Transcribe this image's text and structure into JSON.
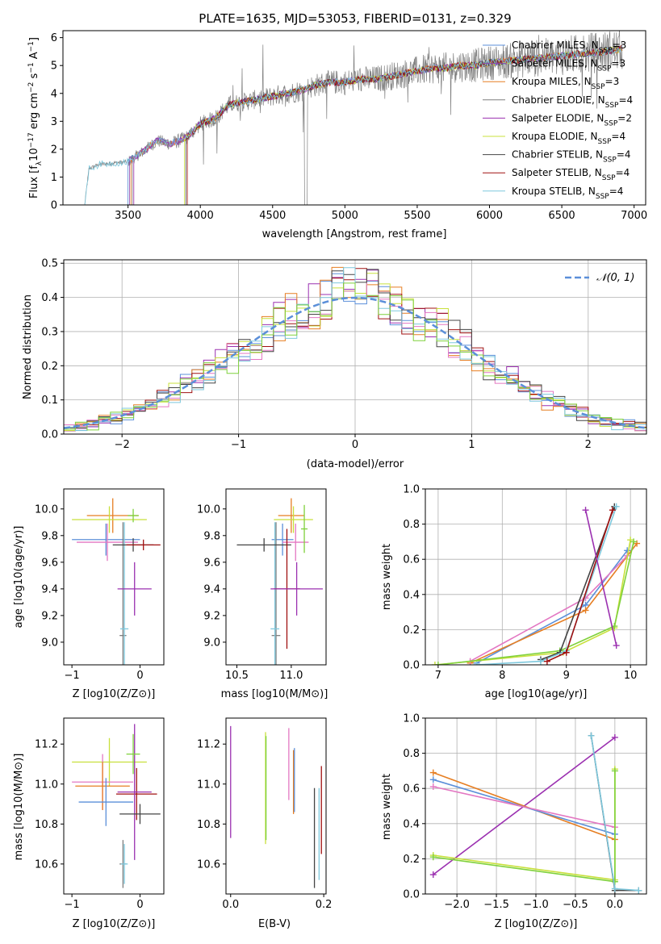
{
  "title": "PLATE=1635, MJD=53053, FIBERID=0131, z=0.329",
  "colors": {
    "chabrier_miles": "#5b8fd9",
    "salpeter_miles": "#8e44ad",
    "kroupa_miles": "#e67e22",
    "chabrier_elodie": "#7f7f7f",
    "salpeter_elodie": "#9b30b0",
    "kroupa_elodie": "#c8e03c",
    "chabrier_stelib": "#444444",
    "salpeter_stelib": "#a01010",
    "kroupa_stelib": "#7ec8dd",
    "pink": "#e377c2",
    "green": "#7fd13b",
    "grid": "#b0b0b0",
    "normal_curve": "#5b8fd9"
  },
  "chart_data": [
    {
      "id": "spectrum",
      "type": "line",
      "xlabel": "wavelength [Angstrom, rest frame]",
      "ylabel_parts": [
        "Flux [f",
        "λ",
        "10",
        "−17",
        " erg cm",
        "−2",
        " s",
        "−1",
        " A",
        "−1",
        "]"
      ],
      "xlim": [
        3050,
        7080
      ],
      "ylim": [
        0,
        6.25
      ],
      "xticks": [
        3500,
        4000,
        4500,
        5000,
        5500,
        6000,
        6500,
        7000
      ],
      "yticks": [
        0,
        1,
        2,
        3,
        4,
        5,
        6
      ],
      "grid": false,
      "legend_position": "right",
      "legend": [
        {
          "name": "Chabrier MILES",
          "n": "3"
        },
        {
          "name": "Salpeter MILES",
          "n": "3"
        },
        {
          "name": "Kroupa MILES",
          "n": "3"
        },
        {
          "name": "Chabrier ELODIE",
          "n": "4"
        },
        {
          "name": "Salpeter ELODIE",
          "n": "2"
        },
        {
          "name": "Kroupa ELODIE",
          "n": "4"
        },
        {
          "name": "Chabrier STELIB",
          "n": "4"
        },
        {
          "name": "Salpeter STELIB",
          "n": "4"
        },
        {
          "name": "Kroupa STELIB",
          "n": "4"
        }
      ],
      "legend_n_label": "N",
      "legend_n_sub": "SSP",
      "data_knots": {
        "x": [
          3200,
          3230,
          3300,
          3400,
          3500,
          3600,
          3700,
          3800,
          3900,
          4000,
          4100,
          4200,
          4300,
          4400,
          4500,
          4600,
          4700,
          4800,
          4900,
          5000,
          5100,
          5200,
          5300,
          5400,
          5500,
          5600,
          5700,
          5800,
          5900,
          6000,
          6200,
          6400,
          6600,
          6800,
          6920
        ],
        "y": [
          0,
          1.3,
          1.45,
          1.5,
          1.55,
          1.9,
          2.3,
          2.2,
          2.4,
          2.9,
          3.1,
          3.6,
          3.7,
          3.8,
          3.9,
          4.0,
          4.1,
          4.3,
          4.4,
          4.4,
          4.5,
          4.5,
          4.6,
          4.7,
          4.8,
          4.9,
          4.9,
          5.0,
          5.0,
          5.1,
          5.2,
          5.3,
          5.4,
          5.5,
          5.6
        ]
      },
      "model_starts": [
        3500,
        3510,
        3520,
        3530,
        3540,
        3890,
        3900,
        3910,
        3200
      ]
    },
    {
      "id": "residuals",
      "type": "histogram",
      "xlabel": "(data-model)/error",
      "ylabel": "Normed distribution",
      "xlim": [
        -2.5,
        2.5
      ],
      "ylim": [
        0,
        0.51
      ],
      "xticks": [
        -2,
        -1,
        0,
        1,
        2
      ],
      "xtick_labels": [
        "−2",
        "−1",
        "0",
        "1",
        "2"
      ],
      "yticks": [
        0,
        0.1,
        0.2,
        0.3,
        0.4,
        0.5
      ],
      "ytick_labels": [
        "0.0",
        "0.1",
        "0.2",
        "0.3",
        "0.4",
        "0.5"
      ],
      "grid": true,
      "legend_position": "top-right",
      "legend_label": "𝒩(0, 1)",
      "bin_width": 0.1
    },
    {
      "id": "age_vs_Z",
      "type": "errorbar",
      "xlabel": "Z [log10(Z/Z⊙)]",
      "ylabel": "age [log10(age/yr)]",
      "xlim": [
        -1.12,
        0.35
      ],
      "ylim": [
        8.83,
        10.15
      ],
      "xticks": [
        -1,
        0
      ],
      "xtick_labels": [
        "−1",
        "0"
      ],
      "yticks": [
        9.0,
        9.2,
        9.4,
        9.6,
        9.8,
        10.0
      ],
      "ytick_labels": [
        "9.0",
        "9.2",
        "9.4",
        "9.6",
        "9.8",
        "10.0"
      ],
      "points": [
        {
          "x": -0.4,
          "xerr": 0.38,
          "y": 9.95,
          "yerr": 0.13,
          "c": "kroupa_miles"
        },
        {
          "x": -0.45,
          "xerr": 0.55,
          "y": 9.92,
          "yerr": 0.1,
          "c": "kroupa_elodie"
        },
        {
          "x": -0.5,
          "xerr": 0.5,
          "y": 9.77,
          "yerr": 0.12,
          "c": "chabrier_miles"
        },
        {
          "x": -0.48,
          "xerr": 0.45,
          "y": 9.75,
          "yerr": 0.14,
          "c": "pink"
        },
        {
          "x": -0.25,
          "xerr": 0.05,
          "y": 9.05,
          "yerr": 0.85,
          "c": "chabrier_elodie"
        },
        {
          "x": -0.23,
          "xerr": 0.06,
          "y": 9.1,
          "yerr": 0.8,
          "c": "kroupa_stelib"
        },
        {
          "x": -0.1,
          "xerr": 0.3,
          "y": 9.73,
          "yerr": 0.05,
          "c": "chabrier_stelib"
        },
        {
          "x": 0.05,
          "xerr": 0.25,
          "y": 9.73,
          "yerr": 0.04,
          "c": "salpeter_stelib"
        },
        {
          "x": -0.08,
          "xerr": 0.25,
          "y": 9.4,
          "yerr": 0.2,
          "c": "salpeter_elodie"
        },
        {
          "x": -0.1,
          "xerr": 0.08,
          "y": 9.95,
          "yerr": 0.05,
          "c": "green"
        }
      ]
    },
    {
      "id": "age_vs_mass",
      "type": "errorbar",
      "xlabel": "mass [log10(M/M⊙)]",
      "xlim": [
        10.4,
        11.32
      ],
      "ylim": [
        8.83,
        10.15
      ],
      "xticks": [
        10.5,
        11.0
      ],
      "xtick_labels": [
        "10.5",
        "11.0"
      ],
      "yticks": [
        9.0,
        9.2,
        9.4,
        9.6,
        9.8,
        10.0
      ],
      "ytick_labels": [
        "9.0",
        "9.2",
        "9.4",
        "9.6",
        "9.8",
        "10.0"
      ],
      "points": [
        {
          "x": 11.0,
          "xerr": 0.12,
          "y": 9.95,
          "yerr": 0.13,
          "c": "kroupa_miles"
        },
        {
          "x": 11.02,
          "xerr": 0.18,
          "y": 9.92,
          "yerr": 0.1,
          "c": "kroupa_elodie"
        },
        {
          "x": 10.92,
          "xerr": 0.1,
          "y": 9.77,
          "yerr": 0.12,
          "c": "chabrier_miles"
        },
        {
          "x": 11.04,
          "xerr": 0.12,
          "y": 9.75,
          "yerr": 0.14,
          "c": "pink"
        },
        {
          "x": 10.86,
          "xerr": 0.04,
          "y": 9.05,
          "yerr": 0.85,
          "c": "chabrier_elodie"
        },
        {
          "x": 10.85,
          "xerr": 0.04,
          "y": 9.1,
          "yerr": 0.8,
          "c": "kroupa_stelib"
        },
        {
          "x": 10.75,
          "xerr": 0.25,
          "y": 9.73,
          "yerr": 0.05,
          "c": "chabrier_stelib"
        },
        {
          "x": 10.96,
          "xerr": 0.12,
          "y": 9.4,
          "yerr": 0.45,
          "c": "salpeter_stelib"
        },
        {
          "x": 11.05,
          "xerr": 0.24,
          "y": 9.4,
          "yerr": 0.2,
          "c": "salpeter_elodie"
        },
        {
          "x": 11.12,
          "xerr": 0.03,
          "y": 9.85,
          "yerr": 0.18,
          "c": "green"
        }
      ]
    },
    {
      "id": "massweight_vs_age",
      "type": "line",
      "xlabel": "age [log10(age/yr)]",
      "ylabel": "mass weight",
      "xlim": [
        6.8,
        10.25
      ],
      "ylim": [
        0,
        1.0
      ],
      "xticks": [
        7,
        8,
        9,
        10
      ],
      "yticks": [
        0,
        0.2,
        0.4,
        0.6,
        0.8,
        1.0
      ],
      "ytick_labels": [
        "0.0",
        "0.2",
        "0.4",
        "0.6",
        "0.8",
        "1.0"
      ],
      "grid": true,
      "series": [
        {
          "c": "chabrier_miles",
          "x": [
            7.6,
            9.3,
            9.95
          ],
          "y": [
            0.01,
            0.34,
            0.65
          ]
        },
        {
          "c": "kroupa_miles",
          "x": [
            7.5,
            9.3,
            10.1
          ],
          "y": [
            0.01,
            0.31,
            0.69
          ]
        },
        {
          "c": "pink",
          "x": [
            7.5,
            9.3,
            9.95
          ],
          "y": [
            0.02,
            0.38,
            0.62
          ]
        },
        {
          "c": "kroupa_elodie",
          "x": [
            6.95,
            8.95,
            9.75,
            10.0
          ],
          "y": [
            0.0,
            0.07,
            0.21,
            0.71
          ]
        },
        {
          "c": "green",
          "x": [
            7.0,
            8.9,
            9.75,
            10.05
          ],
          "y": [
            0.0,
            0.08,
            0.22,
            0.7
          ]
        },
        {
          "c": "chabrier_stelib",
          "x": [
            8.6,
            8.9,
            9.75
          ],
          "y": [
            0.03,
            0.07,
            0.9
          ]
        },
        {
          "c": "kroupa_stelib",
          "x": [
            7.6,
            8.6,
            9.0,
            9.78
          ],
          "y": [
            0.0,
            0.02,
            0.08,
            0.9
          ]
        },
        {
          "c": "salpeter_stelib",
          "x": [
            8.7,
            9.0,
            9.72
          ],
          "y": [
            0.02,
            0.07,
            0.88
          ]
        },
        {
          "c": "salpeter_elodie",
          "x": [
            9.3,
            9.78
          ],
          "y": [
            0.88,
            0.11
          ]
        }
      ]
    },
    {
      "id": "mass_vs_Z",
      "type": "errorbar",
      "xlabel": "Z [log10(Z/Z⊙)]",
      "ylabel": "mass [log10(M/M⊙)]",
      "xlim": [
        -1.12,
        0.35
      ],
      "ylim": [
        10.45,
        11.33
      ],
      "xticks": [
        -1,
        0
      ],
      "xtick_labels": [
        "−1",
        "0"
      ],
      "yticks": [
        10.6,
        10.8,
        11.0,
        11.2
      ],
      "ytick_labels": [
        "10.6",
        "10.8",
        "11.0",
        "11.2"
      ],
      "points": [
        {
          "x": -0.45,
          "xerr": 0.55,
          "y": 11.11,
          "yerr": 0.12,
          "c": "kroupa_elodie"
        },
        {
          "x": -0.55,
          "xerr": 0.45,
          "y": 11.01,
          "yerr": 0.14,
          "c": "pink"
        },
        {
          "x": -0.55,
          "xerr": 0.4,
          "y": 10.99,
          "yerr": 0.12,
          "c": "kroupa_miles"
        },
        {
          "x": -0.5,
          "xerr": 0.4,
          "y": 10.91,
          "yerr": 0.12,
          "c": "chabrier_miles"
        },
        {
          "x": -0.05,
          "xerr": 0.3,
          "y": 10.95,
          "yerr": 0.13,
          "c": "salpeter_stelib"
        },
        {
          "x": -0.08,
          "xerr": 0.25,
          "y": 10.96,
          "yerr": 0.34,
          "c": "salpeter_elodie"
        },
        {
          "x": 0.0,
          "xerr": 0.3,
          "y": 10.85,
          "yerr": 0.05,
          "c": "chabrier_stelib"
        },
        {
          "x": -0.25,
          "xerr": 0.05,
          "y": 10.6,
          "yerr": 0.12,
          "c": "chabrier_elodie"
        },
        {
          "x": -0.23,
          "xerr": 0.05,
          "y": 10.6,
          "yerr": 0.1,
          "c": "kroupa_stelib"
        },
        {
          "x": -0.1,
          "xerr": 0.1,
          "y": 11.15,
          "yerr": 0.1,
          "c": "green"
        }
      ]
    },
    {
      "id": "mass_vs_ebv",
      "type": "errorbar",
      "xlabel": "E(B-V)",
      "xlim": [
        -0.01,
        0.205
      ],
      "ylim": [
        10.45,
        11.33
      ],
      "xticks": [
        0.0,
        0.2
      ],
      "xtick_labels": [
        "0.0",
        "0.2"
      ],
      "yticks": [
        10.6,
        10.8,
        11.0,
        11.2
      ],
      "ytick_labels": [
        "10.6",
        "10.8",
        "11.0",
        "11.2"
      ],
      "points": [
        {
          "x": 0.0,
          "y": 11.01,
          "yerr": 0.28,
          "c": "salpeter_elodie"
        },
        {
          "x": 0.075,
          "y": 10.98,
          "yerr": 0.28,
          "c": "kroupa_elodie"
        },
        {
          "x": 0.076,
          "y": 10.98,
          "yerr": 0.26,
          "c": "green"
        },
        {
          "x": 0.125,
          "y": 11.1,
          "yerr": 0.18,
          "c": "pink"
        },
        {
          "x": 0.135,
          "y": 11.01,
          "yerr": 0.16,
          "c": "kroupa_miles"
        },
        {
          "x": 0.137,
          "y": 11.02,
          "yerr": 0.16,
          "c": "chabrier_miles"
        },
        {
          "x": 0.18,
          "y": 10.73,
          "yerr": 0.25,
          "c": "chabrier_stelib"
        },
        {
          "x": 0.19,
          "y": 10.75,
          "yerr": 0.23,
          "c": "kroupa_stelib"
        },
        {
          "x": 0.195,
          "y": 10.87,
          "yerr": 0.22,
          "c": "salpeter_stelib"
        }
      ]
    },
    {
      "id": "massweight_vs_Z",
      "type": "line",
      "xlabel": "Z [log10(Z/Z⊙)]",
      "ylabel": "mass weight",
      "xlim": [
        -2.4,
        0.4
      ],
      "ylim": [
        0,
        1.0
      ],
      "xticks": [
        -2.0,
        -1.5,
        -1.0,
        -0.5,
        0.0
      ],
      "xtick_labels": [
        "−2.0",
        "−1.5",
        "−1.0",
        "−0.5",
        "0.0"
      ],
      "yticks": [
        0,
        0.2,
        0.4,
        0.6,
        0.8,
        1.0
      ],
      "ytick_labels": [
        "0.0",
        "0.2",
        "0.4",
        "0.6",
        "0.8",
        "1.0"
      ],
      "grid": true,
      "series": [
        {
          "c": "salpeter_elodie",
          "x": [
            -2.3,
            0.0
          ],
          "y": [
            0.11,
            0.89
          ]
        },
        {
          "c": "kroupa_miles",
          "x": [
            -2.3,
            0.0
          ],
          "y": [
            0.69,
            0.31
          ]
        },
        {
          "c": "chabrier_miles",
          "x": [
            -2.3,
            0.0
          ],
          "y": [
            0.65,
            0.34
          ]
        },
        {
          "c": "pink",
          "x": [
            -2.3,
            0.0
          ],
          "y": [
            0.61,
            0.38
          ]
        },
        {
          "c": "kroupa_elodie",
          "x": [
            -2.3,
            0.0,
            0.0
          ],
          "y": [
            0.22,
            0.08,
            0.71
          ]
        },
        {
          "c": "green",
          "x": [
            -2.3,
            0.0,
            0.0
          ],
          "y": [
            0.21,
            0.07,
            0.7
          ]
        },
        {
          "c": "chabrier_stelib",
          "x": [
            -0.3,
            0.0,
            0.3
          ],
          "y": [
            0.9,
            0.02,
            0.02
          ]
        },
        {
          "c": "kroupa_stelib",
          "x": [
            -0.3,
            0.0,
            0.3
          ],
          "y": [
            0.9,
            0.03,
            0.02
          ]
        }
      ]
    }
  ]
}
